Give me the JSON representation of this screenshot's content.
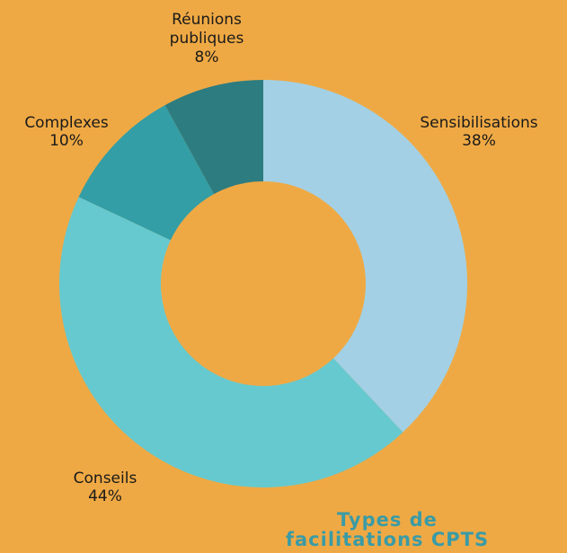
{
  "chart_data": {
    "type": "pie",
    "title": "Types de facilitations CPTS",
    "categories": [
      "Sensibilisations",
      "Conseils",
      "Complexes",
      "Réunions publiques"
    ],
    "values": [
      38,
      44,
      10,
      8
    ],
    "value_labels": [
      "38%",
      "44%",
      "10%",
      "8%"
    ],
    "colors": [
      "#A3D0E4",
      "#66C9CF",
      "#339EA6",
      "#2D7C80"
    ]
  }
}
